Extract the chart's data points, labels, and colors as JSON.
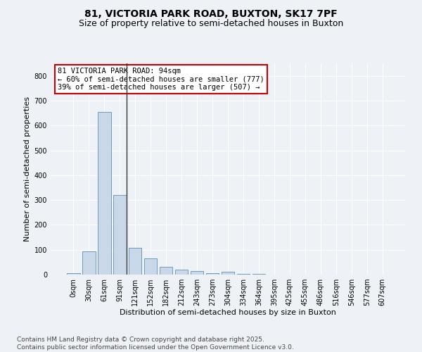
{
  "title1": "81, VICTORIA PARK ROAD, BUXTON, SK17 7PF",
  "title2": "Size of property relative to semi-detached houses in Buxton",
  "xlabel": "Distribution of semi-detached houses by size in Buxton",
  "ylabel": "Number of semi-detached properties",
  "categories": [
    "0sqm",
    "30sqm",
    "61sqm",
    "91sqm",
    "121sqm",
    "152sqm",
    "182sqm",
    "212sqm",
    "243sqm",
    "273sqm",
    "304sqm",
    "334sqm",
    "364sqm",
    "395sqm",
    "425sqm",
    "455sqm",
    "486sqm",
    "516sqm",
    "546sqm",
    "577sqm",
    "607sqm"
  ],
  "values": [
    5,
    93,
    655,
    320,
    107,
    64,
    30,
    20,
    15,
    5,
    10,
    3,
    2,
    0,
    0,
    0,
    0,
    0,
    0,
    0,
    0
  ],
  "bar_color": "#c8d8e8",
  "bar_edge_color": "#6090b8",
  "vline_x_index": 3,
  "vline_color": "#333333",
  "annotation_text": "81 VICTORIA PARK ROAD: 94sqm\n← 60% of semi-detached houses are smaller (777)\n39% of semi-detached houses are larger (507) →",
  "annotation_box_color": "#ffffff",
  "annotation_box_edge": "#cc0000",
  "ylim": [
    0,
    850
  ],
  "yticks": [
    0,
    100,
    200,
    300,
    400,
    500,
    600,
    700,
    800
  ],
  "footer_text": "Contains HM Land Registry data © Crown copyright and database right 2025.\nContains public sector information licensed under the Open Government Licence v3.0.",
  "bg_color": "#eef2f7",
  "plot_bg_color": "#eef2f7",
  "grid_color": "#ffffff",
  "title_fontsize": 10,
  "subtitle_fontsize": 9,
  "axis_label_fontsize": 8,
  "tick_fontsize": 7,
  "annotation_fontsize": 7.5,
  "footer_fontsize": 6.5
}
